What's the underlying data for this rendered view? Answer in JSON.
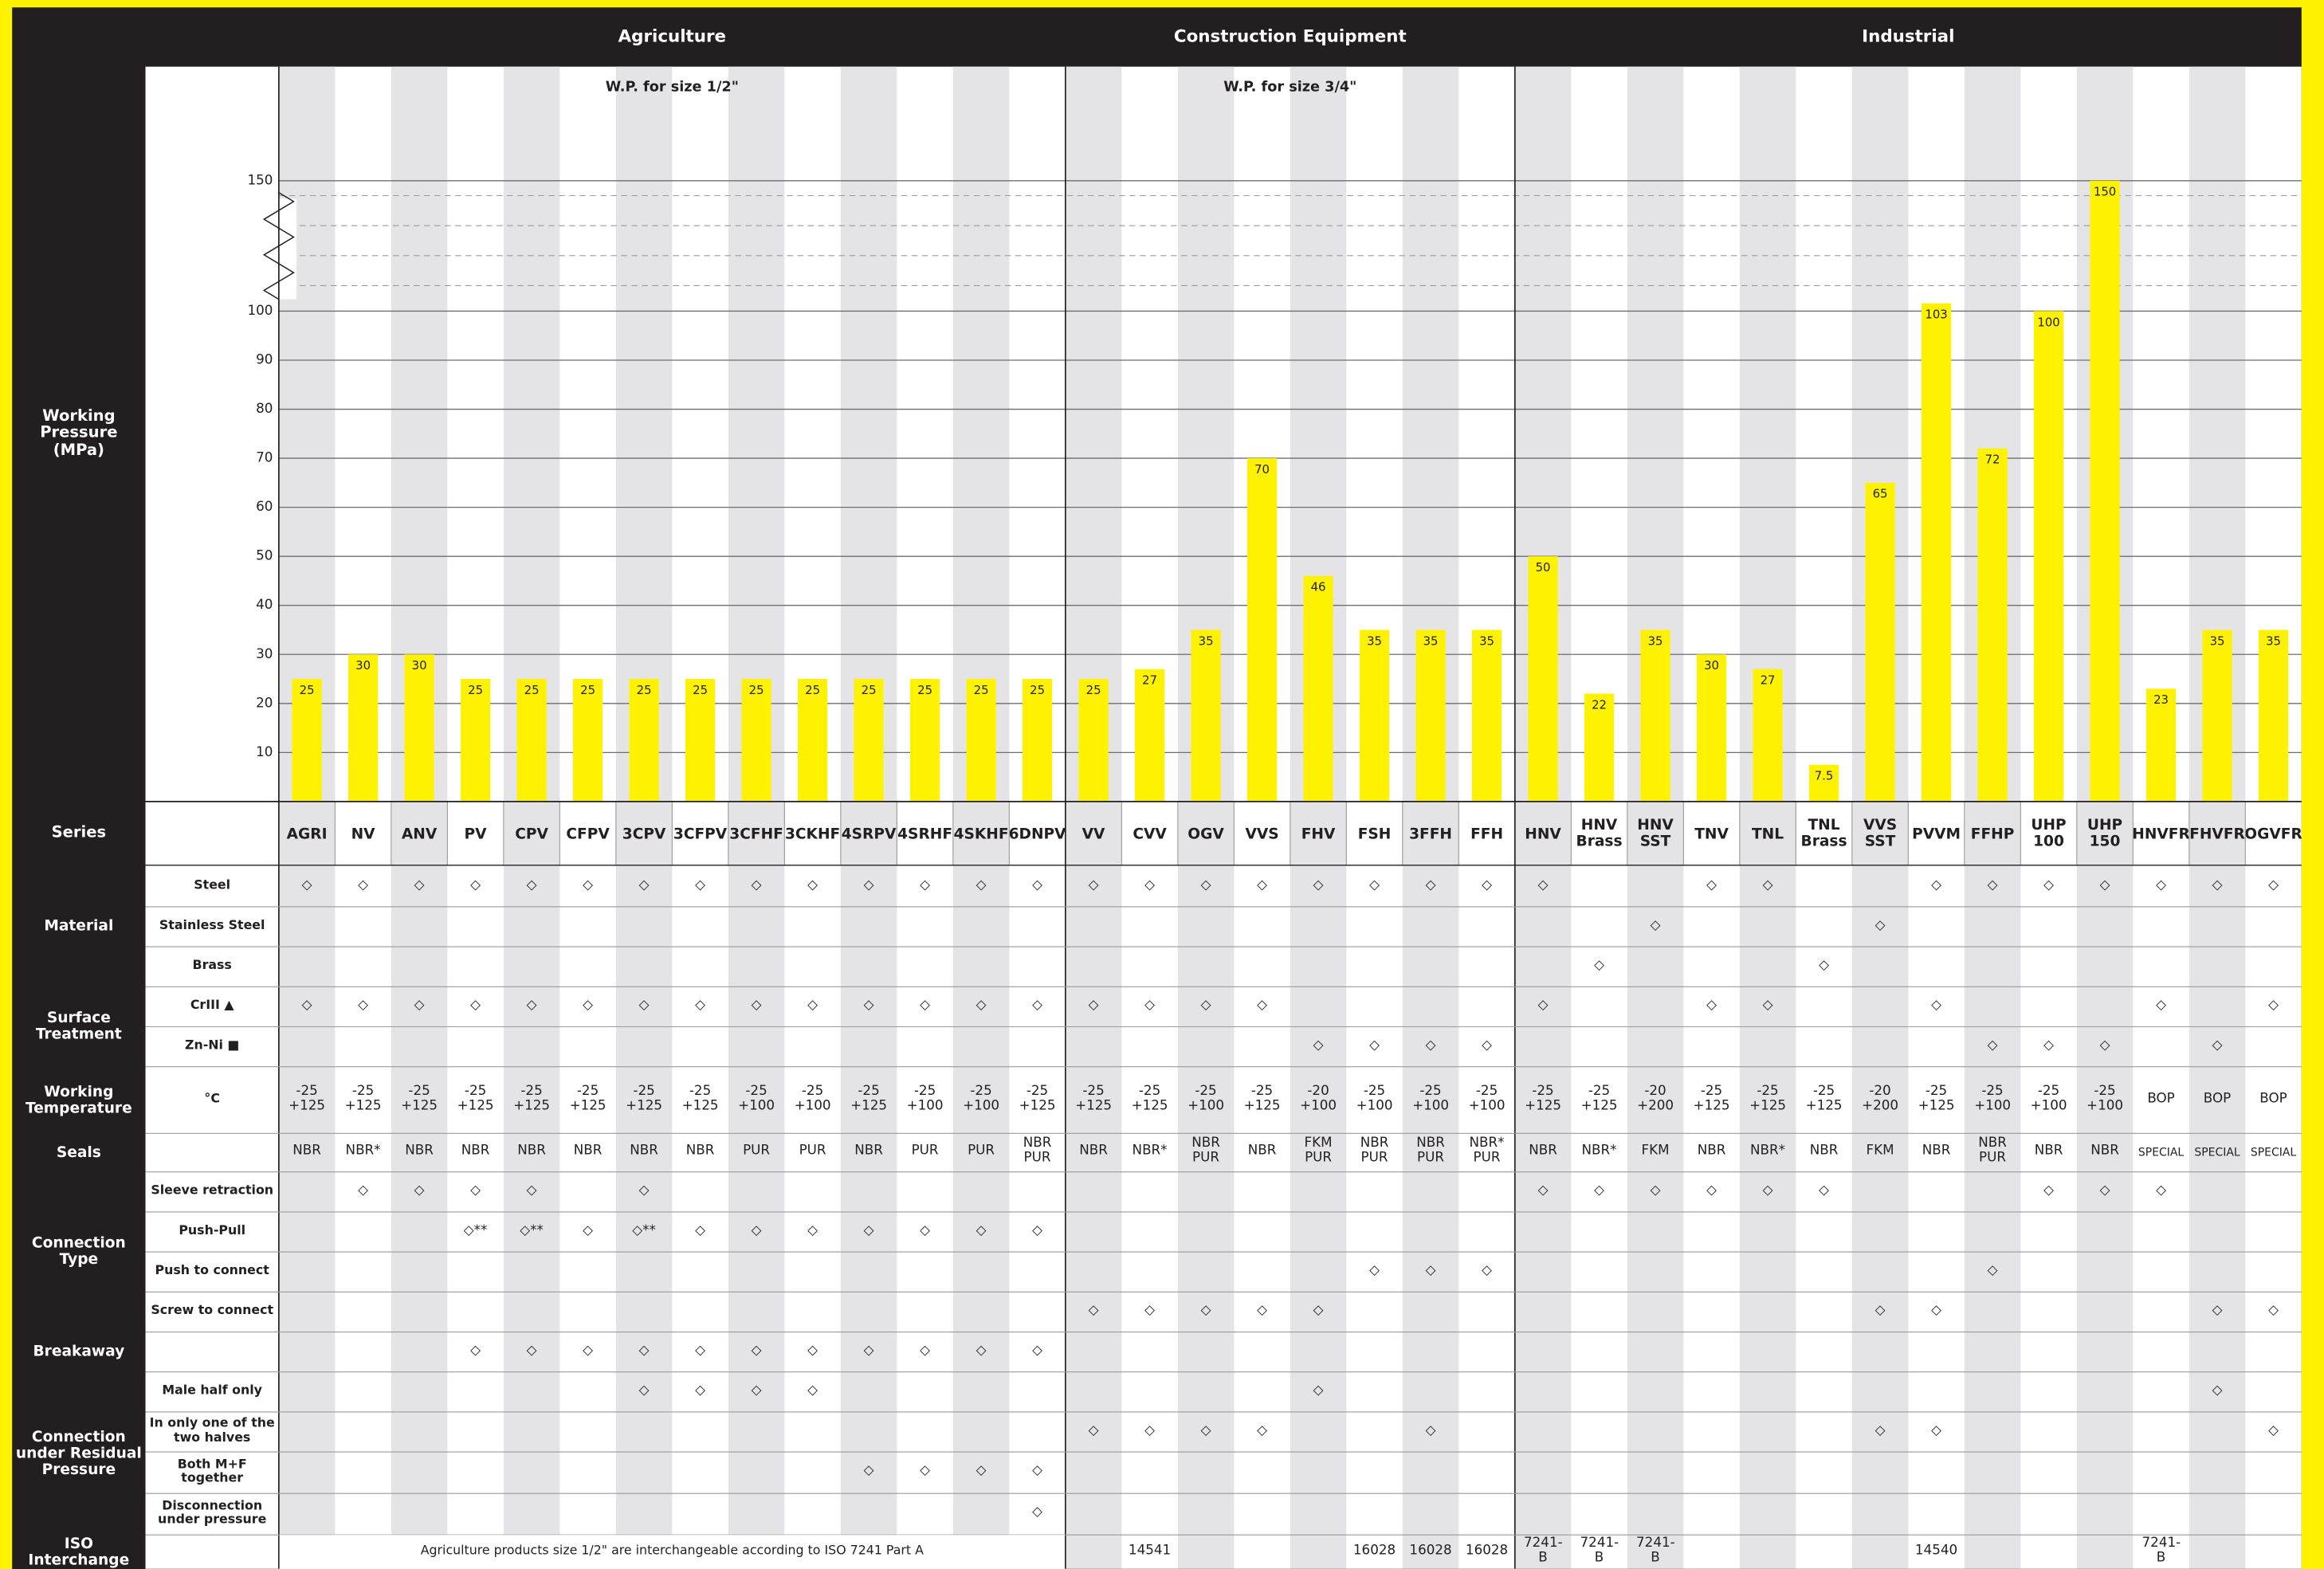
{
  "chart_data": {
    "type": "bar",
    "y_label": "Working Pressure (MPa)",
    "x_label": "Series",
    "color": "#fff200",
    "ylim": [
      0,
      150
    ],
    "yticks": [
      10,
      20,
      30,
      40,
      50,
      60,
      70,
      80,
      90,
      100,
      150
    ],
    "axis_break": true,
    "grid": true,
    "sections": [
      {
        "title": "Agriculture",
        "subtitle": "W.P. for size 1/2\"",
        "categories": [
          "AGRI",
          "NV",
          "ANV",
          "PV",
          "CPV",
          "CFPV",
          "3CPV",
          "3CFPV",
          "3CFHF",
          "3CKHF",
          "4SRPV",
          "4SRHF",
          "4SKHF",
          "6DNPV"
        ],
        "values": [
          25,
          30,
          30,
          25,
          25,
          25,
          25,
          25,
          25,
          25,
          25,
          25,
          25,
          25
        ]
      },
      {
        "title": "Construction Equipment",
        "subtitle": "W.P. for size 3/4\"",
        "categories": [
          "VV",
          "CVV",
          "OGV",
          "VVS",
          "FHV",
          "FSH",
          "3FFH",
          "FFH"
        ],
        "values": [
          25,
          27,
          35,
          70,
          46,
          35,
          35,
          35
        ]
      },
      {
        "title": "Industrial",
        "categories": [
          "HNV",
          "HNV Brass",
          "HNV SST",
          "TNV",
          "TNL",
          "TNL Brass",
          "VVS SST",
          "PVVM",
          "FFHP",
          "UHP 100",
          "UHP 150",
          "HNVFR",
          "FHVFR",
          "OGVFR"
        ],
        "values": [
          50,
          22,
          35,
          30,
          27,
          7.5,
          65,
          103,
          72,
          100,
          150,
          23,
          35,
          35
        ]
      }
    ]
  },
  "table": {
    "rows": [
      {
        "group": "Material",
        "label": "Steel",
        "cells": [
          "◇",
          "◇",
          "◇",
          "◇",
          "◇",
          "◇",
          "◇",
          "◇",
          "◇",
          "◇",
          "◇",
          "◇",
          "◇",
          "◇",
          "◇",
          "◇",
          "◇",
          "◇",
          "◇",
          "◇",
          "◇",
          "◇",
          "◇",
          null,
          null,
          "◇",
          "◇",
          null,
          null,
          "◇",
          "◇",
          "◇",
          "◇",
          "◇",
          "◇",
          "◇"
        ]
      },
      {
        "label": "Stainless Steel",
        "cells": [
          null,
          null,
          null,
          null,
          null,
          null,
          null,
          null,
          null,
          null,
          null,
          null,
          null,
          null,
          null,
          null,
          null,
          null,
          null,
          null,
          null,
          null,
          null,
          null,
          "◇",
          null,
          null,
          null,
          "◇",
          null,
          null,
          null,
          null,
          null,
          null,
          null
        ]
      },
      {
        "label": "Brass",
        "cells": [
          null,
          null,
          null,
          null,
          null,
          null,
          null,
          null,
          null,
          null,
          null,
          null,
          null,
          null,
          null,
          null,
          null,
          null,
          null,
          null,
          null,
          null,
          null,
          "◇",
          null,
          null,
          null,
          "◇",
          null,
          null,
          null,
          null,
          null,
          null,
          null,
          null
        ]
      },
      {
        "group": "Surface Treatment",
        "label": "CrIII ▲",
        "cells": [
          "◇",
          "◇",
          "◇",
          "◇",
          "◇",
          "◇",
          "◇",
          "◇",
          "◇",
          "◇",
          "◇",
          "◇",
          "◇",
          "◇",
          "◇",
          "◇",
          "◇",
          "◇",
          null,
          null,
          null,
          null,
          "◇",
          null,
          null,
          "◇",
          "◇",
          null,
          null,
          "◇",
          null,
          null,
          null,
          "◇",
          null,
          "◇"
        ]
      },
      {
        "label": "Zn-Ni ■",
        "cells": [
          null,
          null,
          null,
          null,
          null,
          null,
          null,
          null,
          null,
          null,
          null,
          null,
          null,
          null,
          null,
          null,
          null,
          null,
          "◇",
          "◇",
          "◇",
          "◇",
          null,
          null,
          null,
          null,
          null,
          null,
          null,
          null,
          "◇",
          "◇",
          "◇",
          null,
          "◇",
          null
        ]
      },
      {
        "group": "Working Temperature",
        "label": "°C",
        "cells": [
          "-25 +125",
          "-25 +125",
          "-25 +125",
          "-25 +125",
          "-25 +125",
          "-25 +125",
          "-25 +125",
          "-25 +125",
          "-25 +100",
          "-25 +100",
          "-25 +125",
          "-25 +100",
          "-25 +100",
          "-25 +125",
          "-25 +125",
          "-25 +125",
          "-25 +100",
          "-25 +125",
          "-20 +100",
          "-25 +100",
          "-25 +100",
          "-25 +100",
          "-25 +125",
          "-25 +125",
          "-20 +200",
          "-25 +125",
          "-25 +125",
          "-25 +125",
          "-20 +200",
          "-25 +125",
          "-25 +100",
          "-25 +100",
          "-25 +100",
          "BOP",
          "BOP",
          "BOP"
        ]
      },
      {
        "group": "Seals",
        "cells": [
          "NBR",
          "NBR*",
          "NBR",
          "NBR",
          "NBR",
          "NBR",
          "NBR",
          "NBR",
          "PUR",
          "PUR",
          "NBR",
          "PUR",
          "PUR",
          "NBR PUR",
          "NBR",
          "NBR*",
          "NBR PUR",
          "NBR",
          "FKM PUR",
          "NBR PUR",
          "NBR PUR",
          "NBR* PUR",
          "NBR",
          "NBR*",
          "FKM",
          "NBR",
          "NBR*",
          "NBR",
          "FKM",
          "NBR",
          "NBR PUR",
          "NBR",
          "NBR",
          "SPECIAL",
          "SPECIAL",
          "SPECIAL"
        ]
      },
      {
        "group": "Connection Type",
        "label": "Sleeve retraction",
        "cells": [
          null,
          "◇",
          "◇",
          "◇",
          "◇",
          null,
          "◇",
          null,
          null,
          null,
          null,
          null,
          null,
          null,
          null,
          null,
          null,
          null,
          null,
          null,
          null,
          null,
          "◇",
          "◇",
          "◇",
          "◇",
          "◇",
          "◇",
          null,
          null,
          null,
          "◇",
          "◇",
          "◇",
          null,
          null
        ]
      },
      {
        "label": "Push-Pull",
        "cells": [
          null,
          null,
          null,
          "◇**",
          "◇**",
          "◇",
          "◇**",
          "◇",
          "◇",
          "◇",
          "◇",
          "◇",
          "◇",
          "◇",
          null,
          null,
          null,
          null,
          null,
          null,
          null,
          null,
          null,
          null,
          null,
          null,
          null,
          null,
          null,
          null,
          null,
          null,
          null,
          null,
          null,
          null
        ]
      },
      {
        "label": "Push to connect",
        "cells": [
          null,
          null,
          null,
          null,
          null,
          null,
          null,
          null,
          null,
          null,
          null,
          null,
          null,
          null,
          null,
          null,
          null,
          null,
          null,
          "◇",
          "◇",
          "◇",
          null,
          null,
          null,
          null,
          null,
          null,
          null,
          null,
          "◇",
          null,
          null,
          null,
          null,
          null
        ]
      },
      {
        "label": "Screw to connect",
        "cells": [
          null,
          null,
          null,
          null,
          null,
          null,
          null,
          null,
          null,
          null,
          null,
          null,
          null,
          null,
          "◇",
          "◇",
          "◇",
          "◇",
          "◇",
          null,
          null,
          null,
          null,
          null,
          null,
          null,
          null,
          null,
          "◇",
          "◇",
          null,
          null,
          null,
          null,
          "◇",
          "◇"
        ]
      },
      {
        "group": "Breakaway",
        "cells": [
          null,
          null,
          null,
          "◇",
          "◇",
          "◇",
          "◇",
          "◇",
          "◇",
          "◇",
          "◇",
          "◇",
          "◇",
          "◇",
          null,
          null,
          null,
          null,
          null,
          null,
          null,
          null,
          null,
          null,
          null,
          null,
          null,
          null,
          null,
          null,
          null,
          null,
          null,
          null,
          null,
          null
        ]
      },
      {
        "group": "Connection under Residual Pressure",
        "label": "Male half only",
        "cells": [
          null,
          null,
          null,
          null,
          null,
          null,
          "◇",
          "◇",
          "◇",
          "◇",
          null,
          null,
          null,
          null,
          null,
          null,
          null,
          null,
          "◇",
          null,
          null,
          null,
          null,
          null,
          null,
          null,
          null,
          null,
          null,
          null,
          null,
          null,
          null,
          null,
          "◇",
          null
        ]
      },
      {
        "label": "In only one of the two halves",
        "cells": [
          null,
          null,
          null,
          null,
          null,
          null,
          null,
          null,
          null,
          null,
          null,
          null,
          null,
          null,
          "◇",
          "◇",
          "◇",
          "◇",
          null,
          null,
          "◇",
          null,
          null,
          null,
          null,
          null,
          null,
          null,
          "◇",
          "◇",
          null,
          null,
          null,
          null,
          null,
          "◇"
        ]
      },
      {
        "label": "Both M+F together",
        "cells": [
          null,
          null,
          null,
          null,
          null,
          null,
          null,
          null,
          null,
          null,
          "◇",
          "◇",
          "◇",
          "◇",
          null,
          null,
          null,
          null,
          null,
          null,
          null,
          null,
          null,
          null,
          null,
          null,
          null,
          null,
          null,
          null,
          null,
          null,
          null,
          null,
          null,
          null
        ]
      },
      {
        "label": "Disconnection under pressure",
        "cells": [
          null,
          null,
          null,
          null,
          null,
          null,
          null,
          null,
          null,
          null,
          null,
          null,
          null,
          "◇",
          null,
          null,
          null,
          null,
          null,
          null,
          null,
          null,
          null,
          null,
          null,
          null,
          null,
          null,
          null,
          null,
          null,
          null,
          null,
          null,
          null,
          null
        ]
      },
      {
        "group": "ISO Interchange",
        "note": "Agriculture products size 1/2\" are interchangeable according to ISO 7241 Part A",
        "cells": [
          null,
          null,
          null,
          null,
          null,
          null,
          null,
          null,
          null,
          null,
          null,
          null,
          null,
          null,
          null,
          "14541",
          null,
          null,
          null,
          "16028",
          "16028",
          "16028",
          "7241-B",
          "7241-B",
          "7241-B",
          null,
          null,
          null,
          null,
          "14540",
          null,
          null,
          null,
          "7241-B",
          null,
          null
        ]
      }
    ]
  }
}
